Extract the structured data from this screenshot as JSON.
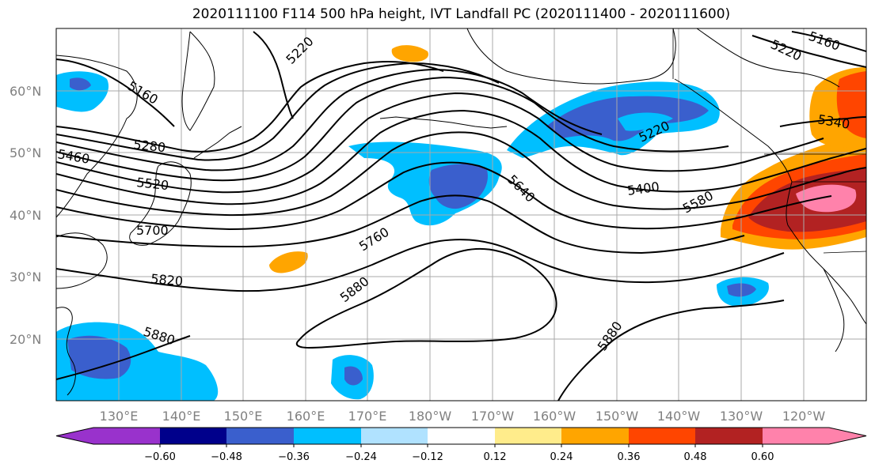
{
  "title": "2020111100 F114 500 hPa height, IVT Landfall PC (2020111400 - 2020111600)",
  "lat_labels": [
    "60°N",
    "50°N",
    "40°N",
    "30°N",
    "20°N"
  ],
  "lon_labels": [
    "130°E",
    "140°E",
    "150°E",
    "160°E",
    "170°E",
    "180°W",
    "170°W",
    "160°W",
    "150°W",
    "140°W",
    "130°W",
    "120°W"
  ],
  "contour_labels": [
    "5220",
    "5160",
    "5280",
    "5460",
    "5520",
    "5700",
    "5820",
    "5880",
    "5760",
    "5880",
    "5640",
    "5400",
    "5580",
    "5220",
    "5340",
    "5220",
    "5160",
    "5880"
  ],
  "colorbar": {
    "ticks": [
      "−0.60",
      "−0.48",
      "−0.36",
      "−0.24",
      "−0.12",
      "0.12",
      "0.24",
      "0.36",
      "0.48",
      "0.60"
    ],
    "colors": [
      "#9932cc",
      "#00008b",
      "#3a5fcd",
      "#00bfff",
      "#b0e2ff",
      "#ffffff",
      "#ffec8b",
      "#ffa500",
      "#ff4500",
      "#b22222",
      "#ff82ab"
    ]
  }
}
